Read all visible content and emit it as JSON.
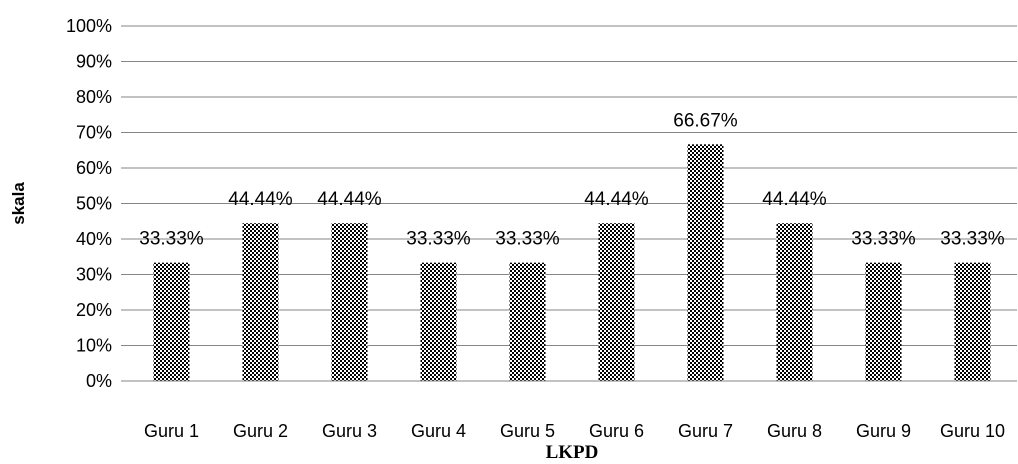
{
  "chart_data": {
    "type": "bar",
    "categories": [
      "Guru 1",
      "Guru 2",
      "Guru 3",
      "Guru 4",
      "Guru 5",
      "Guru 6",
      "Guru 7",
      "Guru 8",
      "Guru 9",
      "Guru 10"
    ],
    "values": [
      33.33,
      44.44,
      44.44,
      33.33,
      33.33,
      44.44,
      66.67,
      44.44,
      33.33,
      33.33
    ],
    "data_labels": [
      "33.33%",
      "44.44%",
      "44.44%",
      "33.33%",
      "33.33%",
      "44.44%",
      "66.67%",
      "44.44%",
      "33.33%",
      "33.33%"
    ],
    "yticks": [
      "0%",
      "10%",
      "20%",
      "30%",
      "40%",
      "50%",
      "60%",
      "70%",
      "80%",
      "90%",
      "100%"
    ],
    "title": "",
    "xlabel": "LKPD",
    "ylabel": "skala",
    "ylim": [
      0,
      100
    ],
    "grid": true,
    "legend": false,
    "bar_pattern": "checkered"
  }
}
